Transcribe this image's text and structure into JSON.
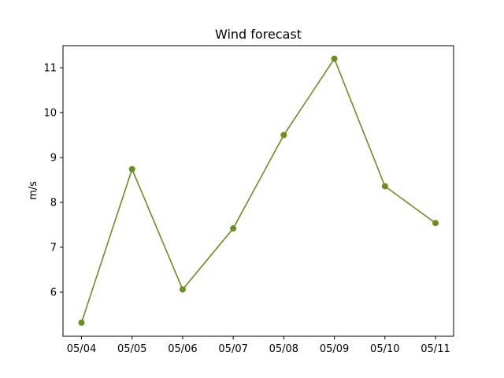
{
  "chart_data": {
    "type": "line",
    "title": "Wind forecast",
    "xlabel": "",
    "ylabel": "m/s",
    "categories": [
      "05/04",
      "05/05",
      "05/06",
      "05/07",
      "05/08",
      "05/09",
      "05/10",
      "05/11"
    ],
    "series": [
      {
        "values": [
          5.32,
          8.74,
          6.06,
          7.42,
          9.5,
          11.2,
          8.36,
          7.54
        ],
        "color": "#6b8e23"
      }
    ],
    "yticks": [
      6,
      7,
      8,
      9,
      10,
      11
    ],
    "ylim": [
      5.0,
      11.5
    ],
    "grid": false,
    "markers": true
  }
}
